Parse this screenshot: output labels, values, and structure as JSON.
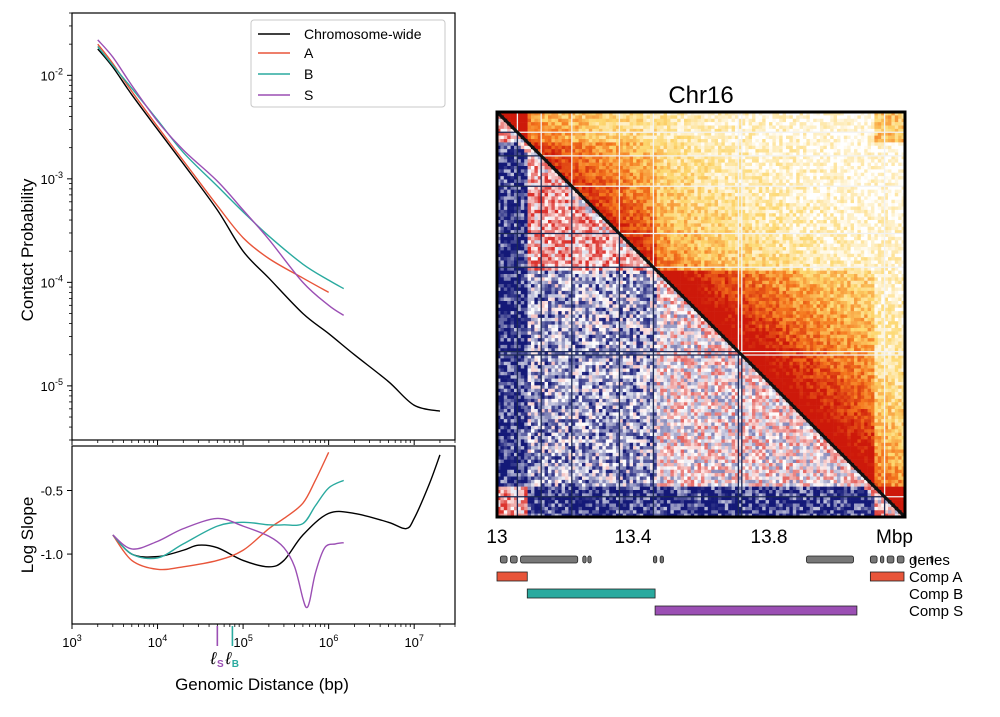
{
  "chart_data": [
    {
      "type": "line",
      "panel": "contact-probability",
      "title": "",
      "xlabel": "",
      "ylabel": "Contact Probability",
      "x_scale": "log",
      "y_scale": "log",
      "xlim": [
        1000,
        30000000
      ],
      "ylim": [
        3e-06,
        0.04
      ],
      "y_ticks": [
        {
          "value": 0.01,
          "base": "10",
          "exp": "-2"
        },
        {
          "value": 0.001,
          "base": "10",
          "exp": "-3"
        },
        {
          "value": 0.0001,
          "base": "10",
          "exp": "-4"
        },
        {
          "value": 1e-05,
          "base": "10",
          "exp": "-5"
        }
      ],
      "legend": {
        "position": "top-right",
        "entries": [
          "Chromosome-wide",
          "A",
          "B",
          "S"
        ]
      },
      "series": [
        {
          "name": "Chromosome-wide",
          "color": "#000000",
          "x": [
            2000,
            3000,
            5000,
            10000,
            20000,
            50000,
            100000,
            200000,
            500000,
            1000000,
            2000000,
            5000000,
            10000000,
            20000000
          ],
          "y": [
            0.018,
            0.012,
            0.0065,
            0.003,
            0.0014,
            0.0005,
            0.0002,
            0.00011,
            5e-05,
            3.2e-05,
            2e-05,
            1.1e-05,
            6.5e-06,
            5.7e-06
          ]
        },
        {
          "name": "A",
          "color": "#e8553a",
          "x": [
            2000,
            3000,
            5000,
            10000,
            20000,
            50000,
            100000,
            200000,
            500000,
            1000000
          ],
          "y": [
            0.02,
            0.013,
            0.007,
            0.0032,
            0.0015,
            0.00055,
            0.00027,
            0.00017,
            0.00011,
            8e-05
          ]
        },
        {
          "name": "B",
          "color": "#2aaa9f",
          "x": [
            2000,
            3000,
            5000,
            10000,
            20000,
            50000,
            100000,
            200000,
            500000,
            1000000,
            1500000
          ],
          "y": [
            0.019,
            0.0125,
            0.0075,
            0.0037,
            0.0018,
            0.00085,
            0.00048,
            0.00028,
            0.00015,
            0.000105,
            8.7e-05
          ]
        },
        {
          "name": "S",
          "color": "#9b4fb4",
          "x": [
            2000,
            3000,
            5000,
            10000,
            20000,
            50000,
            100000,
            200000,
            500000,
            1000000,
            1500000
          ],
          "y": [
            0.022,
            0.015,
            0.008,
            0.0036,
            0.0019,
            0.00095,
            0.0005,
            0.00026,
            0.0001,
            6e-05,
            4.8e-05
          ]
        }
      ]
    },
    {
      "type": "line",
      "panel": "log-slope",
      "title": "",
      "xlabel": "Genomic Distance (bp)",
      "ylabel": "Log Slope",
      "x_scale": "log",
      "y_scale": "linear",
      "xlim": [
        1000,
        30000000
      ],
      "ylim": [
        -1.55,
        -0.15
      ],
      "y_ticks": [
        {
          "value": -0.5,
          "label": "-0.5"
        },
        {
          "value": -1.0,
          "label": "-1.0"
        }
      ],
      "x_ticks": [
        {
          "value": 1000,
          "base": "10",
          "exp": "3"
        },
        {
          "value": 10000,
          "base": "10",
          "exp": "4"
        },
        {
          "value": 100000,
          "base": "10",
          "exp": "5"
        },
        {
          "value": 1000000,
          "base": "10",
          "exp": "6"
        },
        {
          "value": 10000000,
          "base": "10",
          "exp": "7"
        }
      ],
      "annotations": [
        {
          "symbol": "ℓ",
          "sub": "S",
          "x": 50000,
          "color": "#9b4fb4"
        },
        {
          "symbol": "ℓ",
          "sub": "B",
          "x": 75000,
          "color": "#2aaa9f"
        }
      ],
      "series": [
        {
          "name": "Chromosome-wide",
          "color": "#000000",
          "x": [
            3000,
            5000,
            10000,
            20000,
            30000,
            50000,
            100000,
            200000,
            300000,
            500000,
            1000000,
            2000000,
            5000000,
            8000000,
            10000000,
            15000000,
            20000000
          ],
          "y": [
            -0.85,
            -1.0,
            -1.02,
            -0.97,
            -0.93,
            -0.95,
            -1.05,
            -1.1,
            -1.05,
            -0.85,
            -0.68,
            -0.68,
            -0.75,
            -0.8,
            -0.72,
            -0.45,
            -0.22
          ]
        },
        {
          "name": "A",
          "color": "#e8553a",
          "x": [
            3000,
            5000,
            10000,
            20000,
            50000,
            100000,
            200000,
            300000,
            500000,
            700000,
            1000000
          ],
          "y": [
            -0.85,
            -1.05,
            -1.12,
            -1.1,
            -1.05,
            -0.97,
            -0.8,
            -0.72,
            -0.6,
            -0.42,
            -0.2
          ]
        },
        {
          "name": "B",
          "color": "#2aaa9f",
          "x": [
            3000,
            5000,
            10000,
            20000,
            50000,
            100000,
            200000,
            300000,
            500000,
            700000,
            1000000,
            1500000
          ],
          "y": [
            -0.85,
            -1.0,
            -1.03,
            -0.92,
            -0.78,
            -0.75,
            -0.77,
            -0.77,
            -0.76,
            -0.62,
            -0.48,
            -0.42
          ]
        },
        {
          "name": "S",
          "color": "#9b4fb4",
          "x": [
            3000,
            5000,
            10000,
            20000,
            50000,
            100000,
            200000,
            300000,
            400000,
            500000,
            550000,
            600000,
            700000,
            900000,
            1200000,
            1500000
          ],
          "y": [
            -0.85,
            -0.96,
            -0.9,
            -0.8,
            -0.72,
            -0.78,
            -0.86,
            -0.95,
            -1.1,
            -1.35,
            -1.42,
            -1.37,
            -1.15,
            -0.95,
            -0.92,
            -0.91
          ]
        }
      ]
    },
    {
      "type": "heatmap",
      "panel": "hic-map",
      "title": "Chr16",
      "xlabel": "Mbp",
      "x_ticks": [
        "13",
        "13.4",
        "13.8"
      ],
      "xlim": [
        13.0,
        14.2
      ],
      "upper_triangle": "contact frequency (white–yellow–orange–red)",
      "lower_triangle": "observed/expected (blue–white–red)",
      "boundaries_mbp": [
        13.06,
        13.13,
        13.22,
        13.36,
        13.46,
        13.71,
        13.72,
        14.14
      ],
      "tracks": [
        {
          "name": "genes",
          "color": "#777777",
          "segments": [
            [
              13.01,
              13.03
            ],
            [
              13.04,
              13.06
            ],
            [
              13.07,
              13.24
            ],
            [
              13.255,
              13.265
            ],
            [
              13.27,
              13.28
            ],
            [
              13.465,
              13.475
            ],
            [
              13.485,
              13.495
            ],
            [
              13.92,
              14.06
            ],
            [
              14.11,
              14.13
            ],
            [
              14.14,
              14.15
            ],
            [
              14.16,
              14.18
            ],
            [
              14.19,
              14.23
            ],
            [
              14.24,
              14.27
            ],
            [
              14.29,
              14.31
            ]
          ]
        },
        {
          "name": "Comp A",
          "color": "#e8553a",
          "segments": [
            [
              13.0,
              13.09
            ],
            [
              14.11,
              14.25
            ]
          ]
        },
        {
          "name": "Comp B",
          "color": "#2aaa9f",
          "segments": [
            [
              13.09,
              13.47
            ]
          ]
        },
        {
          "name": "Comp S",
          "color": "#9b4fb4",
          "segments": [
            [
              13.47,
              14.07
            ]
          ]
        }
      ]
    }
  ]
}
